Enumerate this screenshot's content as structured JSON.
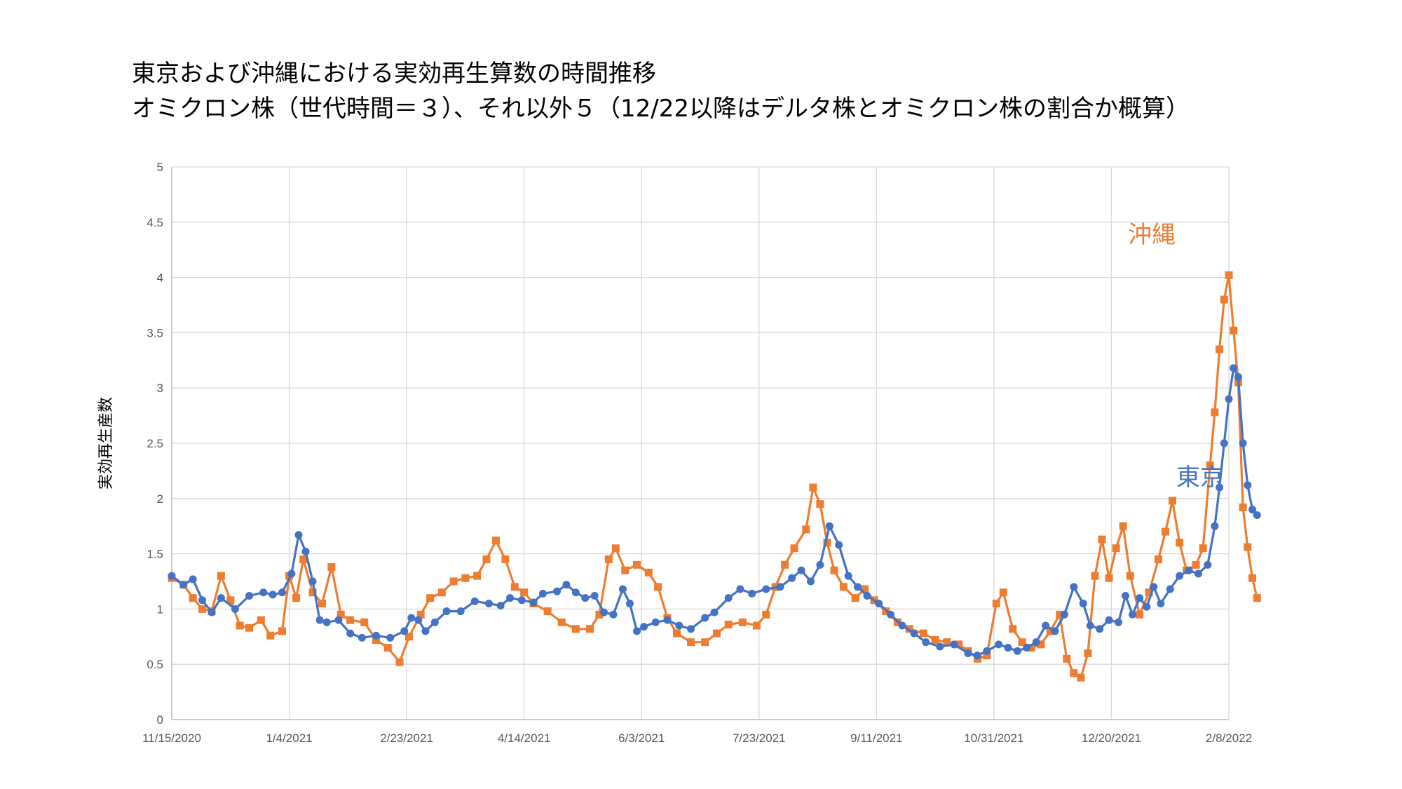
{
  "title": {
    "line1": "東京および沖縄における実効再生算数の時間推移",
    "line2": "オミクロン株（世代時間＝３）、それ以外５（12/22以降はデルタ株とオミクロン株の割合か概算）"
  },
  "chart_data": {
    "type": "line",
    "title": "東京および沖縄における実効再生算数の時間推移 オミクロン株（世代時間＝３）、それ以外５（12/22以降はデルタ株とオミクロン株の割合か概算）",
    "xlabel": "",
    "ylabel": "実効再生産数",
    "x_ticks": [
      "11/15/2020",
      "1/4/2021",
      "2/23/2021",
      "4/14/2021",
      "6/3/2021",
      "7/23/2021",
      "9/11/2021",
      "10/31/2021",
      "12/20/2021",
      "2/8/2022"
    ],
    "y_ticks": [
      "0",
      "0.5",
      "1",
      "1.5",
      "2",
      "2.5",
      "3",
      "3.5",
      "4",
      "4.5",
      "5"
    ],
    "xlim": [
      "2020-11-15",
      "2022-02-08"
    ],
    "ylim": [
      0,
      5
    ],
    "grid": true,
    "legend": "none",
    "annotations": [
      {
        "text": "沖縄",
        "series": "沖縄"
      },
      {
        "text": "東京",
        "series": "東京"
      }
    ],
    "series": [
      {
        "name": "東京",
        "color": "#4472C4",
        "marker": "circle",
        "points": [
          [
            "2020-11-15",
            1.3
          ],
          [
            "2020-11-20",
            1.22
          ],
          [
            "2020-11-24",
            1.27
          ],
          [
            "2020-11-28",
            1.08
          ],
          [
            "2020-12-02",
            0.97
          ],
          [
            "2020-12-06",
            1.1
          ],
          [
            "2020-12-12",
            1.0
          ],
          [
            "2020-12-18",
            1.12
          ],
          [
            "2020-12-24",
            1.15
          ],
          [
            "2020-12-28",
            1.13
          ],
          [
            "2021-01-01",
            1.15
          ],
          [
            "2021-01-05",
            1.32
          ],
          [
            "2021-01-08",
            1.67
          ],
          [
            "2021-01-11",
            1.52
          ],
          [
            "2021-01-14",
            1.25
          ],
          [
            "2021-01-17",
            0.9
          ],
          [
            "2021-01-20",
            0.88
          ],
          [
            "2021-01-25",
            0.9
          ],
          [
            "2021-01-30",
            0.78
          ],
          [
            "2021-02-04",
            0.74
          ],
          [
            "2021-02-10",
            0.76
          ],
          [
            "2021-02-16",
            0.74
          ],
          [
            "2021-02-22",
            0.8
          ],
          [
            "2021-02-25",
            0.92
          ],
          [
            "2021-02-28",
            0.9
          ],
          [
            "2021-03-03",
            0.8
          ],
          [
            "2021-03-07",
            0.88
          ],
          [
            "2021-03-12",
            0.98
          ],
          [
            "2021-03-18",
            0.98
          ],
          [
            "2021-03-24",
            1.07
          ],
          [
            "2021-03-30",
            1.05
          ],
          [
            "2021-04-04",
            1.03
          ],
          [
            "2021-04-08",
            1.1
          ],
          [
            "2021-04-13",
            1.08
          ],
          [
            "2021-04-18",
            1.06
          ],
          [
            "2021-04-22",
            1.14
          ],
          [
            "2021-04-28",
            1.16
          ],
          [
            "2021-05-02",
            1.22
          ],
          [
            "2021-05-06",
            1.15
          ],
          [
            "2021-05-10",
            1.1
          ],
          [
            "2021-05-14",
            1.12
          ],
          [
            "2021-05-18",
            0.97
          ],
          [
            "2021-05-22",
            0.95
          ],
          [
            "2021-05-26",
            1.18
          ],
          [
            "2021-05-29",
            1.05
          ],
          [
            "2021-06-01",
            0.8
          ],
          [
            "2021-06-04",
            0.84
          ],
          [
            "2021-06-09",
            0.88
          ],
          [
            "2021-06-14",
            0.9
          ],
          [
            "2021-06-19",
            0.85
          ],
          [
            "2021-06-24",
            0.82
          ],
          [
            "2021-06-30",
            0.92
          ],
          [
            "2021-07-04",
            0.97
          ],
          [
            "2021-07-10",
            1.1
          ],
          [
            "2021-07-15",
            1.18
          ],
          [
            "2021-07-20",
            1.14
          ],
          [
            "2021-07-26",
            1.18
          ],
          [
            "2021-08-01",
            1.2
          ],
          [
            "2021-08-06",
            1.28
          ],
          [
            "2021-08-10",
            1.35
          ],
          [
            "2021-08-14",
            1.25
          ],
          [
            "2021-08-18",
            1.4
          ],
          [
            "2021-08-22",
            1.75
          ],
          [
            "2021-08-26",
            1.58
          ],
          [
            "2021-08-30",
            1.3
          ],
          [
            "2021-09-03",
            1.2
          ],
          [
            "2021-09-07",
            1.12
          ],
          [
            "2021-09-12",
            1.05
          ],
          [
            "2021-09-17",
            0.95
          ],
          [
            "2021-09-22",
            0.85
          ],
          [
            "2021-09-27",
            0.78
          ],
          [
            "2021-10-02",
            0.7
          ],
          [
            "2021-10-08",
            0.66
          ],
          [
            "2021-10-14",
            0.68
          ],
          [
            "2021-10-20",
            0.6
          ],
          [
            "2021-10-24",
            0.58
          ],
          [
            "2021-10-28",
            0.62
          ],
          [
            "2021-11-02",
            0.68
          ],
          [
            "2021-11-06",
            0.65
          ],
          [
            "2021-11-10",
            0.62
          ],
          [
            "2021-11-14",
            0.65
          ],
          [
            "2021-11-18",
            0.7
          ],
          [
            "2021-11-22",
            0.85
          ],
          [
            "2021-11-26",
            0.8
          ],
          [
            "2021-11-30",
            0.95
          ],
          [
            "2021-12-04",
            1.2
          ],
          [
            "2021-12-08",
            1.05
          ],
          [
            "2021-12-11",
            0.85
          ],
          [
            "2021-12-15",
            0.82
          ],
          [
            "2021-12-19",
            0.9
          ],
          [
            "2021-12-23",
            0.88
          ],
          [
            "2021-12-26",
            1.12
          ],
          [
            "2021-12-29",
            0.95
          ],
          [
            "2022-01-01",
            1.1
          ],
          [
            "2022-01-04",
            1.02
          ],
          [
            "2022-01-07",
            1.2
          ],
          [
            "2022-01-10",
            1.05
          ],
          [
            "2022-01-14",
            1.18
          ],
          [
            "2022-01-18",
            1.3
          ],
          [
            "2022-01-22",
            1.35
          ],
          [
            "2022-01-26",
            1.32
          ],
          [
            "2022-01-30",
            1.4
          ],
          [
            "2022-02-02",
            1.75
          ],
          [
            "2022-02-04",
            2.1
          ],
          [
            "2022-02-06",
            2.5
          ],
          [
            "2022-02-08",
            2.9
          ],
          [
            "2022-02-10",
            3.18
          ],
          [
            "2022-02-12",
            3.1
          ],
          [
            "2022-02-14",
            2.5
          ],
          [
            "2022-02-16",
            2.12
          ],
          [
            "2022-02-18",
            1.9
          ],
          [
            "2022-02-20",
            1.85
          ]
        ]
      },
      {
        "name": "沖縄",
        "color": "#ED7D31",
        "marker": "square",
        "points": [
          [
            "2020-11-15",
            1.28
          ],
          [
            "2020-11-20",
            1.22
          ],
          [
            "2020-11-24",
            1.1
          ],
          [
            "2020-11-28",
            1.0
          ],
          [
            "2020-12-02",
            0.98
          ],
          [
            "2020-12-06",
            1.3
          ],
          [
            "2020-12-10",
            1.08
          ],
          [
            "2020-12-14",
            0.85
          ],
          [
            "2020-12-18",
            0.83
          ],
          [
            "2020-12-23",
            0.9
          ],
          [
            "2020-12-27",
            0.76
          ],
          [
            "2021-01-01",
            0.8
          ],
          [
            "2021-01-04",
            1.3
          ],
          [
            "2021-01-07",
            1.1
          ],
          [
            "2021-01-10",
            1.45
          ],
          [
            "2021-01-14",
            1.15
          ],
          [
            "2021-01-18",
            1.05
          ],
          [
            "2021-01-22",
            1.38
          ],
          [
            "2021-01-26",
            0.95
          ],
          [
            "2021-01-30",
            0.9
          ],
          [
            "2021-02-05",
            0.88
          ],
          [
            "2021-02-10",
            0.72
          ],
          [
            "2021-02-15",
            0.65
          ],
          [
            "2021-02-20",
            0.52
          ],
          [
            "2021-02-24",
            0.75
          ],
          [
            "2021-03-01",
            0.95
          ],
          [
            "2021-03-05",
            1.1
          ],
          [
            "2021-03-10",
            1.15
          ],
          [
            "2021-03-15",
            1.25
          ],
          [
            "2021-03-20",
            1.28
          ],
          [
            "2021-03-25",
            1.3
          ],
          [
            "2021-03-29",
            1.45
          ],
          [
            "2021-04-02",
            1.62
          ],
          [
            "2021-04-06",
            1.45
          ],
          [
            "2021-04-10",
            1.2
          ],
          [
            "2021-04-14",
            1.15
          ],
          [
            "2021-04-18",
            1.05
          ],
          [
            "2021-04-24",
            0.98
          ],
          [
            "2021-04-30",
            0.88
          ],
          [
            "2021-05-06",
            0.82
          ],
          [
            "2021-05-12",
            0.82
          ],
          [
            "2021-05-16",
            0.95
          ],
          [
            "2021-05-20",
            1.45
          ],
          [
            "2021-05-23",
            1.55
          ],
          [
            "2021-05-27",
            1.35
          ],
          [
            "2021-06-01",
            1.4
          ],
          [
            "2021-06-06",
            1.33
          ],
          [
            "2021-06-10",
            1.2
          ],
          [
            "2021-06-14",
            0.92
          ],
          [
            "2021-06-18",
            0.78
          ],
          [
            "2021-06-24",
            0.7
          ],
          [
            "2021-06-30",
            0.7
          ],
          [
            "2021-07-05",
            0.78
          ],
          [
            "2021-07-10",
            0.86
          ],
          [
            "2021-07-16",
            0.88
          ],
          [
            "2021-07-22",
            0.85
          ],
          [
            "2021-07-26",
            0.95
          ],
          [
            "2021-07-30",
            1.2
          ],
          [
            "2021-08-03",
            1.4
          ],
          [
            "2021-08-07",
            1.55
          ],
          [
            "2021-08-12",
            1.72
          ],
          [
            "2021-08-15",
            2.1
          ],
          [
            "2021-08-18",
            1.95
          ],
          [
            "2021-08-21",
            1.6
          ],
          [
            "2021-08-24",
            1.35
          ],
          [
            "2021-08-28",
            1.2
          ],
          [
            "2021-09-02",
            1.1
          ],
          [
            "2021-09-06",
            1.18
          ],
          [
            "2021-09-10",
            1.08
          ],
          [
            "2021-09-15",
            0.98
          ],
          [
            "2021-09-20",
            0.88
          ],
          [
            "2021-09-25",
            0.82
          ],
          [
            "2021-10-01",
            0.78
          ],
          [
            "2021-10-06",
            0.72
          ],
          [
            "2021-10-11",
            0.7
          ],
          [
            "2021-10-16",
            0.68
          ],
          [
            "2021-10-20",
            0.62
          ],
          [
            "2021-10-24",
            0.55
          ],
          [
            "2021-10-28",
            0.58
          ],
          [
            "2021-11-01",
            1.05
          ],
          [
            "2021-11-04",
            1.15
          ],
          [
            "2021-11-08",
            0.82
          ],
          [
            "2021-11-12",
            0.7
          ],
          [
            "2021-11-16",
            0.65
          ],
          [
            "2021-11-20",
            0.68
          ],
          [
            "2021-11-24",
            0.8
          ],
          [
            "2021-11-28",
            0.95
          ],
          [
            "2021-12-01",
            0.55
          ],
          [
            "2021-12-04",
            0.42
          ],
          [
            "2021-12-07",
            0.38
          ],
          [
            "2021-12-10",
            0.6
          ],
          [
            "2021-12-13",
            1.3
          ],
          [
            "2021-12-16",
            1.63
          ],
          [
            "2021-12-19",
            1.28
          ],
          [
            "2021-12-22",
            1.55
          ],
          [
            "2021-12-25",
            1.75
          ],
          [
            "2021-12-28",
            1.3
          ],
          [
            "2022-01-01",
            0.95
          ],
          [
            "2022-01-05",
            1.15
          ],
          [
            "2022-01-09",
            1.45
          ],
          [
            "2022-01-12",
            1.7
          ],
          [
            "2022-01-15",
            1.98
          ],
          [
            "2022-01-18",
            1.6
          ],
          [
            "2022-01-21",
            1.35
          ],
          [
            "2022-01-25",
            1.4
          ],
          [
            "2022-01-28",
            1.55
          ],
          [
            "2022-01-31",
            2.3
          ],
          [
            "2022-02-02",
            2.78
          ],
          [
            "2022-02-04",
            3.35
          ],
          [
            "2022-02-06",
            3.8
          ],
          [
            "2022-02-08",
            4.02
          ],
          [
            "2022-02-10",
            3.52
          ],
          [
            "2022-02-12",
            3.05
          ],
          [
            "2022-02-14",
            1.92
          ],
          [
            "2022-02-16",
            1.56
          ],
          [
            "2022-02-18",
            1.28
          ],
          [
            "2022-02-20",
            1.1
          ]
        ]
      }
    ]
  }
}
